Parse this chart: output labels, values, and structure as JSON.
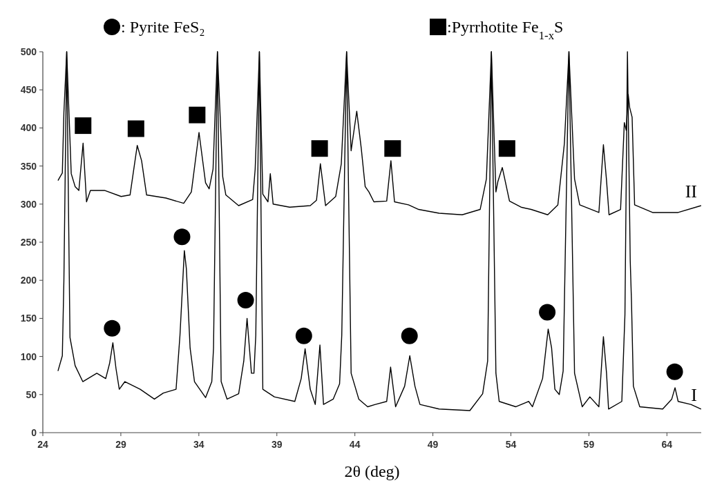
{
  "chart_data": {
    "type": "line",
    "xlabel": "2θ (deg)",
    "xlim": [
      24,
      66.2
    ],
    "xticks": [
      24,
      29,
      34,
      39,
      44,
      49,
      54,
      59,
      64
    ],
    "ylim": [
      0,
      500
    ],
    "yticks": [
      0,
      50,
      100,
      150,
      200,
      250,
      300,
      350,
      400,
      450,
      500
    ],
    "grid": false,
    "legend": "top",
    "series": [
      {
        "name": "I",
        "color": "#000000",
        "x": [
          24.97,
          25.25,
          25.35,
          25.53,
          25.74,
          26.07,
          26.56,
          27.46,
          28.03,
          28.28,
          28.49,
          28.69,
          28.9,
          29.26,
          30.24,
          31.15,
          31.72,
          32.54,
          32.79,
          33.07,
          33.2,
          33.44,
          33.72,
          34.43,
          34.83,
          34.94,
          35.19,
          35.43,
          35.81,
          36.55,
          36.88,
          37.09,
          37.37,
          37.53,
          37.65,
          37.88,
          38.1,
          38.84,
          40.15,
          40.56,
          40.81,
          41.14,
          41.46,
          41.76,
          41.99,
          42.61,
          43.02,
          43.16,
          43.47,
          43.76,
          44.25,
          44.82,
          45.31,
          46.04,
          46.29,
          46.61,
          47.19,
          47.52,
          47.85,
          48.17,
          49.4,
          51.37,
          52.19,
          52.51,
          52.75,
          53.04,
          53.25,
          54.32,
          55.14,
          55.38,
          56.03,
          56.39,
          56.61,
          56.82,
          57.1,
          57.35,
          57.72,
          58.08,
          58.57,
          59.06,
          59.64,
          59.93,
          60.13,
          60.26,
          61.11,
          61.31,
          61.47,
          61.65,
          61.73,
          61.85,
          62.26,
          63.73,
          64.31,
          64.52,
          64.72,
          65.54,
          66.19
        ],
        "values": [
          81,
          101,
          200,
          500,
          125,
          88,
          67,
          78,
          71,
          91,
          118,
          84,
          57,
          67,
          57,
          44,
          52,
          57,
          128,
          239,
          215,
          111,
          67,
          46,
          67,
          111,
          500,
          67,
          44,
          51,
          94,
          150,
          78,
          78,
          128,
          500,
          57,
          47,
          41,
          71,
          110,
          57,
          37,
          115,
          37,
          44,
          64,
          128,
          500,
          78,
          44,
          34,
          37,
          41,
          86,
          34,
          61,
          101,
          61,
          37,
          31,
          29,
          51,
          94,
          500,
          78,
          41,
          34,
          41,
          34,
          71,
          136,
          111,
          57,
          50,
          81,
          500,
          78,
          34,
          47,
          34,
          126,
          78,
          31,
          41,
          155,
          500,
          225,
          172,
          61,
          34,
          31,
          44,
          59,
          41,
          37,
          31
        ]
      },
      {
        "name": "II",
        "color": "#000000",
        "x": [
          24.97,
          25.25,
          25.35,
          25.53,
          25.82,
          26.07,
          26.31,
          26.58,
          26.8,
          27.05,
          27.95,
          29.02,
          29.59,
          30.05,
          30.33,
          30.65,
          31.89,
          33.03,
          33.52,
          34.01,
          34.43,
          34.66,
          34.91,
          35.19,
          35.53,
          35.73,
          36.55,
          37.45,
          37.61,
          37.88,
          38.1,
          38.43,
          38.58,
          38.76,
          39.82,
          41.14,
          41.54,
          41.79,
          42.12,
          42.77,
          43.13,
          43.47,
          43.76,
          44.12,
          44.41,
          44.66,
          44.9,
          45.22,
          46.04,
          46.31,
          46.54,
          47.44,
          48.09,
          49.4,
          50.88,
          52.03,
          52.43,
          52.75,
          53.04,
          53.17,
          53.45,
          53.91,
          54.65,
          55.3,
          56.36,
          57.01,
          57.43,
          57.72,
          58.08,
          58.41,
          59.64,
          59.93,
          60.13,
          60.29,
          61.03,
          61.27,
          61.39,
          61.52,
          61.61,
          61.77,
          61.93,
          63.08,
          64.72,
          66.19
        ],
        "values": [
          331,
          341,
          420,
          500,
          340,
          323,
          318,
          380,
          303,
          318,
          318,
          310,
          312,
          377,
          357,
          312,
          308,
          301,
          316,
          394,
          328,
          320,
          346,
          500,
          336,
          312,
          298,
          306,
          346,
          500,
          313,
          303,
          340,
          300,
          296,
          298,
          305,
          353,
          298,
          310,
          353,
          500,
          370,
          422,
          373,
          323,
          316,
          303,
          304,
          357,
          303,
          299,
          293,
          288,
          286,
          293,
          333,
          500,
          316,
          330,
          348,
          304,
          296,
          293,
          286,
          299,
          380,
          500,
          333,
          299,
          289,
          378,
          331,
          286,
          293,
          407,
          397,
          444,
          427,
          414,
          299,
          289,
          289,
          298
        ]
      },
      {
        "name": ": Pyrite FeS₂",
        "type": "scatter",
        "marker": "circle",
        "color": "#000000",
        "x": [
          28.44,
          32.92,
          37.0,
          40.73,
          47.5,
          56.33,
          64.5
        ],
        "values": [
          137,
          257,
          174,
          127,
          127,
          158,
          80
        ]
      },
      {
        "name": ":Pyrrhotite Fe$_{1-x}$S",
        "type": "scatter",
        "marker": "square",
        "color": "#000000",
        "x": [
          26.58,
          29.97,
          33.89,
          41.74,
          46.42,
          53.75
        ],
        "values": [
          403,
          399,
          417,
          373,
          373,
          373
        ]
      }
    ]
  }
}
